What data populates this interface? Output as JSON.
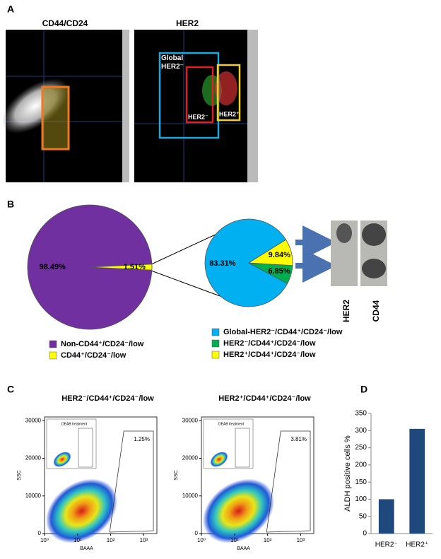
{
  "figure": {
    "panel_labels": [
      "A",
      "B",
      "C",
      "D"
    ],
    "panel_a": {
      "titles": [
        "CD44/CD24",
        "HER2"
      ],
      "gates": [
        "Global HER2⁻",
        "HER2⁻",
        "HER2⁺"
      ]
    },
    "blot_labels": [
      "HER2",
      "CD44"
    ]
  },
  "chart_data": [
    {
      "type": "pie",
      "categories": [
        "Non-CD44⁺/CD24⁻/low",
        "CD44⁺/CD24⁻/low"
      ],
      "values": [
        98.49,
        1.51
      ],
      "value_labels": [
        "98.49%",
        "1.51%"
      ],
      "colors": [
        "#7030a0",
        "#ffff00"
      ]
    },
    {
      "type": "pie",
      "categories": [
        "Global-HER2⁻/CD44⁺/CD24⁻/low",
        "HER2⁻/CD44⁺/CD24⁻/low",
        "HER2⁺/CD44⁺/CD24⁻/low"
      ],
      "values": [
        83.31,
        6.85,
        9.84
      ],
      "value_labels": [
        "83.31%",
        "6.85%",
        "9.84%"
      ],
      "colors": [
        "#00b0f0",
        "#00b050",
        "#ffff00"
      ]
    },
    {
      "type": "flow",
      "title": "HER2⁻/CD44⁺/CD24⁻/low",
      "xlabel": "BAAA",
      "ylabel": "SSC",
      "xscale": "log",
      "xlim": [
        1,
        2500
      ],
      "ylim": [
        0,
        31000
      ],
      "xticks": [
        {
          "value": 1,
          "label": "10⁰"
        },
        {
          "value": 10,
          "label": "10¹"
        },
        {
          "value": 100,
          "label": "10²"
        },
        {
          "value": 1000,
          "label": "10³"
        }
      ],
      "yticks": [
        0,
        10000,
        20000,
        30000
      ],
      "gate_label": "1.25%",
      "inset": "DEAB treatment"
    },
    {
      "type": "flow",
      "title": "HER2⁺/CD44⁺/CD24⁻/low",
      "xlabel": "BAAA",
      "ylabel": "SSC",
      "xscale": "log",
      "xlim": [
        1,
        2500
      ],
      "ylim": [
        0,
        31000
      ],
      "xticks": [
        {
          "value": 1,
          "label": "10⁰"
        },
        {
          "value": 10,
          "label": "10¹"
        },
        {
          "value": 100,
          "label": "10²"
        },
        {
          "value": 1000,
          "label": "10³"
        }
      ],
      "yticks": [
        0,
        10000,
        20000,
        30000
      ],
      "gate_label": "3.81%",
      "inset": "DEAB treatment"
    },
    {
      "type": "bar",
      "ylabel": "ALDH positive cells %",
      "categories": [
        "HER2⁻",
        "HER2⁺"
      ],
      "values": [
        100,
        305
      ],
      "color": "#1f497d",
      "ylim": [
        0,
        350
      ],
      "yticks": [
        0,
        50,
        100,
        150,
        200,
        250,
        300,
        350
      ]
    }
  ]
}
